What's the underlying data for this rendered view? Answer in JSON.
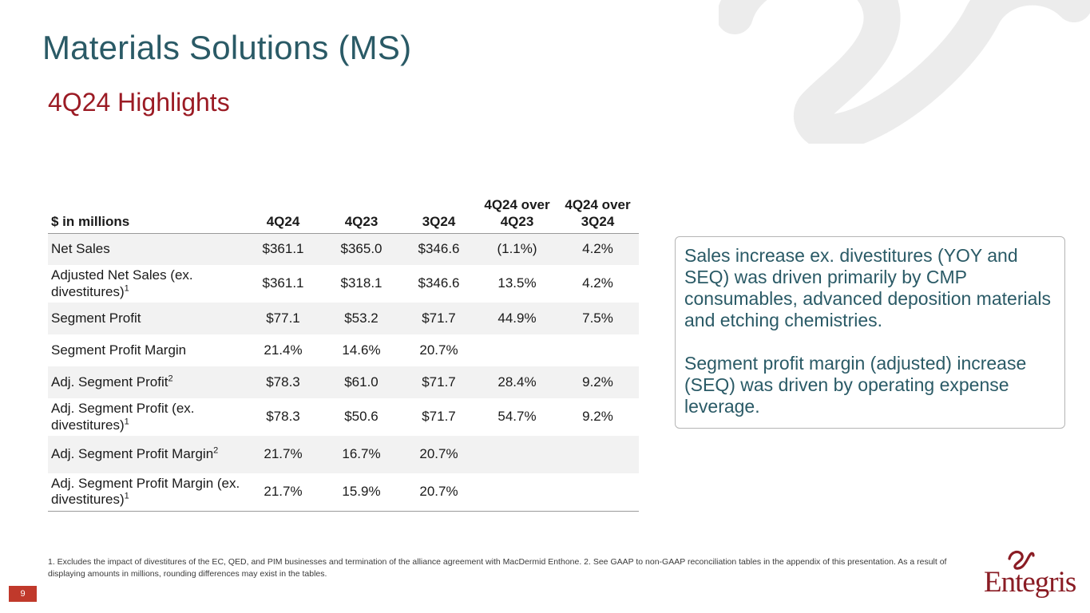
{
  "page": {
    "title": "Materials Solutions (MS)",
    "subtitle": "4Q24 Highlights",
    "page_number": "9"
  },
  "table": {
    "headers": {
      "label": "$ in millions",
      "c1": "4Q24",
      "c2": "4Q23",
      "c3": "3Q24",
      "c4_line1": "4Q24 over",
      "c4_line2": "4Q23",
      "c5_line1": "4Q24 over",
      "c5_line2": "3Q24"
    },
    "rows": [
      {
        "label": "Net Sales",
        "sup": "",
        "c1": "$361.1",
        "c2": "$365.0",
        "c3": "$346.6",
        "c4": "(1.1%)",
        "c5": "4.2%"
      },
      {
        "label": "Adjusted Net Sales (ex. divestitures)",
        "sup": "1",
        "c1": "$361.1",
        "c2": "$318.1",
        "c3": "$346.6",
        "c4": "13.5%",
        "c5": "4.2%"
      },
      {
        "label": "Segment Profit",
        "sup": "",
        "c1": "$77.1",
        "c2": "$53.2",
        "c3": "$71.7",
        "c4": "44.9%",
        "c5": "7.5%"
      },
      {
        "label": "Segment Profit Margin",
        "sup": "",
        "c1": "21.4%",
        "c2": "14.6%",
        "c3": "20.7%",
        "c4": "",
        "c5": ""
      },
      {
        "label": "Adj. Segment Profit",
        "sup": "2",
        "c1": "$78.3",
        "c2": "$61.0",
        "c3": "$71.7",
        "c4": "28.4%",
        "c5": "9.2%"
      },
      {
        "label": "Adj. Segment Profit (ex. divestitures)",
        "sup": "1",
        "c1": "$78.3",
        "c2": "$50.6",
        "c3": "$71.7",
        "c4": "54.7%",
        "c5": "9.2%"
      },
      {
        "label": "Adj. Segment Profit Margin",
        "sup": "2",
        "c1": "21.7%",
        "c2": "16.7%",
        "c3": "20.7%",
        "c4": "",
        "c5": ""
      },
      {
        "label": "Adj. Segment Profit Margin (ex. divestitures)",
        "sup": "1",
        "c1": "21.7%",
        "c2": "15.9%",
        "c3": "20.7%",
        "c4": "",
        "c5": ""
      }
    ]
  },
  "callout": {
    "para1": "Sales increase ex. divestitures (YOY and SEQ) was driven primarily by CMP consumables, advanced deposition materials and etching chemistries.",
    "para2": "Segment profit margin (adjusted) increase (SEQ) was driven by operating expense leverage."
  },
  "footnote": "1. Excludes the impact of divestitures of the EC, QED, and PIM businesses and termination of the alliance agreement with MacDermid Enthone. 2. See GAAP to non-GAAP reconciliation tables in the appendix of this presentation. As a result of displaying amounts in millions, rounding differences may exist in the tables.",
  "logo": {
    "text": "Entegris",
    "icon": "entegris-ampersand-icon"
  },
  "colors": {
    "title": "#2a5a66",
    "subtitle": "#9b1b24",
    "accent_red": "#c0392b",
    "watermark": "#eeeeee"
  }
}
